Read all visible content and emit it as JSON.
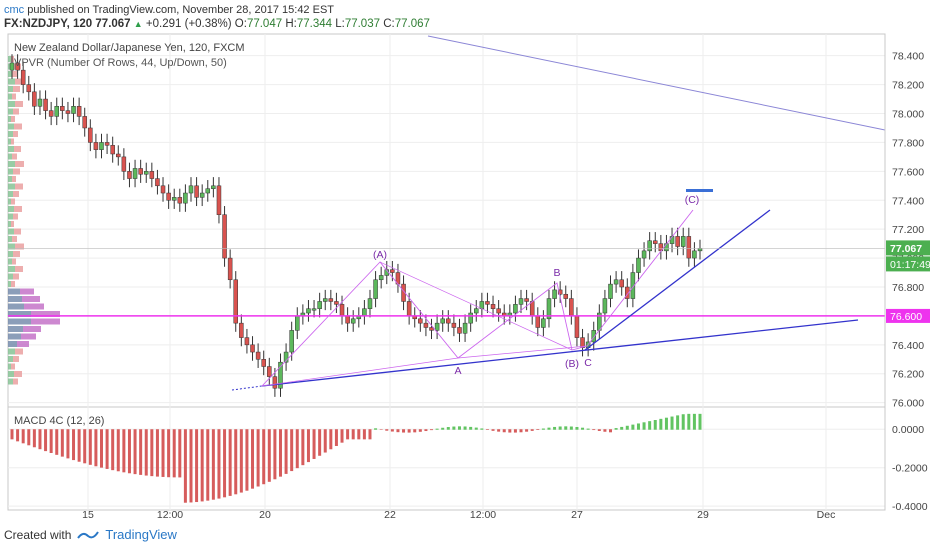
{
  "header": {
    "publisher": "cmc",
    "published_line": "published on TradingView.com, November 28, 2017 15:42 EST",
    "symbol": "FX:NZDJPY, 120",
    "last_price": "77.067",
    "change": "+0.291 (+0.38%)",
    "o_label": "O:",
    "o_value": "77.047",
    "h_label": "H:",
    "h_value": "77.344",
    "l_label": "L:",
    "l_value": "77.037",
    "c_label": "C:",
    "c_value": "77.067"
  },
  "footer": {
    "created_with": "Created with",
    "brand": "TradingView"
  },
  "colors": {
    "up": "#5cb85c",
    "down": "#d9534f",
    "vp_up": "#7fbf8e",
    "vp_down": "#e99a9a",
    "vp_value_area_up": "#6e86a8",
    "vp_value_area_down": "#c06ac4",
    "poc": "#ee33ee",
    "trend": "#3333cc",
    "wave": "#cc66ee",
    "macd_up": "#62c462",
    "macd_down": "#d65c5c",
    "target_box": "#3a6fd6"
  },
  "chart_data": [
    {
      "type": "candlestick",
      "title": "New Zealand Dollar/Japanese Yen, 120, FXCM",
      "indicator_label": "VPVR (Number Of Rows, 44, Up/Down, 50)",
      "x_tick_labels": [
        "15",
        "12:00",
        "20",
        "22",
        "12:00",
        "27",
        "29",
        "Dec"
      ],
      "y_ticks": [
        "76.000",
        "76.200",
        "76.400",
        "76.600",
        "76.800",
        "77.000",
        "77.200",
        "77.400",
        "77.600",
        "77.800",
        "78.000",
        "78.200",
        "78.400"
      ],
      "ylim": [
        75.97,
        78.55
      ],
      "price_marker": "77.067",
      "countdown": "01:17:49",
      "poc_level": 76.6,
      "series_close": [
        78.35,
        78.3,
        78.2,
        78.15,
        78.05,
        78.1,
        78.02,
        77.98,
        78.05,
        78.02,
        78.0,
        78.05,
        77.98,
        77.9,
        77.8,
        77.75,
        77.8,
        77.78,
        77.72,
        77.7,
        77.6,
        77.55,
        77.62,
        77.58,
        77.6,
        77.55,
        77.5,
        77.45,
        77.4,
        77.42,
        77.38,
        77.45,
        77.5,
        77.42,
        77.45,
        77.48,
        77.5,
        77.3,
        77.0,
        76.85,
        76.55,
        76.45,
        76.4,
        76.35,
        76.3,
        76.25,
        76.18,
        76.1,
        76.28,
        76.35,
        76.5,
        76.6,
        76.62,
        76.65,
        76.65,
        76.7,
        76.72,
        76.7,
        76.68,
        76.6,
        76.55,
        76.58,
        76.6,
        76.65,
        76.72,
        76.85,
        76.88,
        76.92,
        76.9,
        76.82,
        76.7,
        76.6,
        76.58,
        76.55,
        76.52,
        76.5,
        76.55,
        76.58,
        76.55,
        76.52,
        76.48,
        76.55,
        76.62,
        76.65,
        76.7,
        76.68,
        76.65,
        76.62,
        76.6,
        76.62,
        76.68,
        76.72,
        76.7,
        76.6,
        76.52,
        76.58,
        76.72,
        76.78,
        76.75,
        76.72,
        76.6,
        76.45,
        76.38,
        76.42,
        76.5,
        76.62,
        76.72,
        76.82,
        76.85,
        76.8,
        76.72,
        76.9,
        77.0,
        77.05,
        77.12,
        77.1,
        77.05,
        77.1,
        77.15,
        77.08,
        77.15,
        77.0,
        77.05,
        77.067
      ],
      "fib_points": [
        {
          "label": "(A)",
          "x": "22 Nov",
          "y": 76.97
        },
        {
          "label": "A",
          "x": "23 Nov",
          "y": 76.27
        },
        {
          "label": "B",
          "x": "26 Nov",
          "y": 76.82
        },
        {
          "label": "(B)",
          "x": "27 Nov",
          "y": 76.33
        },
        {
          "label": "C",
          "x": "27 Nov",
          "y": 76.36
        },
        {
          "label": "(C)",
          "x": "28 Nov",
          "y": 77.35
        }
      ]
    },
    {
      "type": "bar",
      "title": "MACD 4C (12, 26)",
      "y_ticks": [
        "-0.4000",
        "-0.2000",
        "0.0000"
      ],
      "ylim": [
        -0.42,
        0.1
      ]
    }
  ]
}
